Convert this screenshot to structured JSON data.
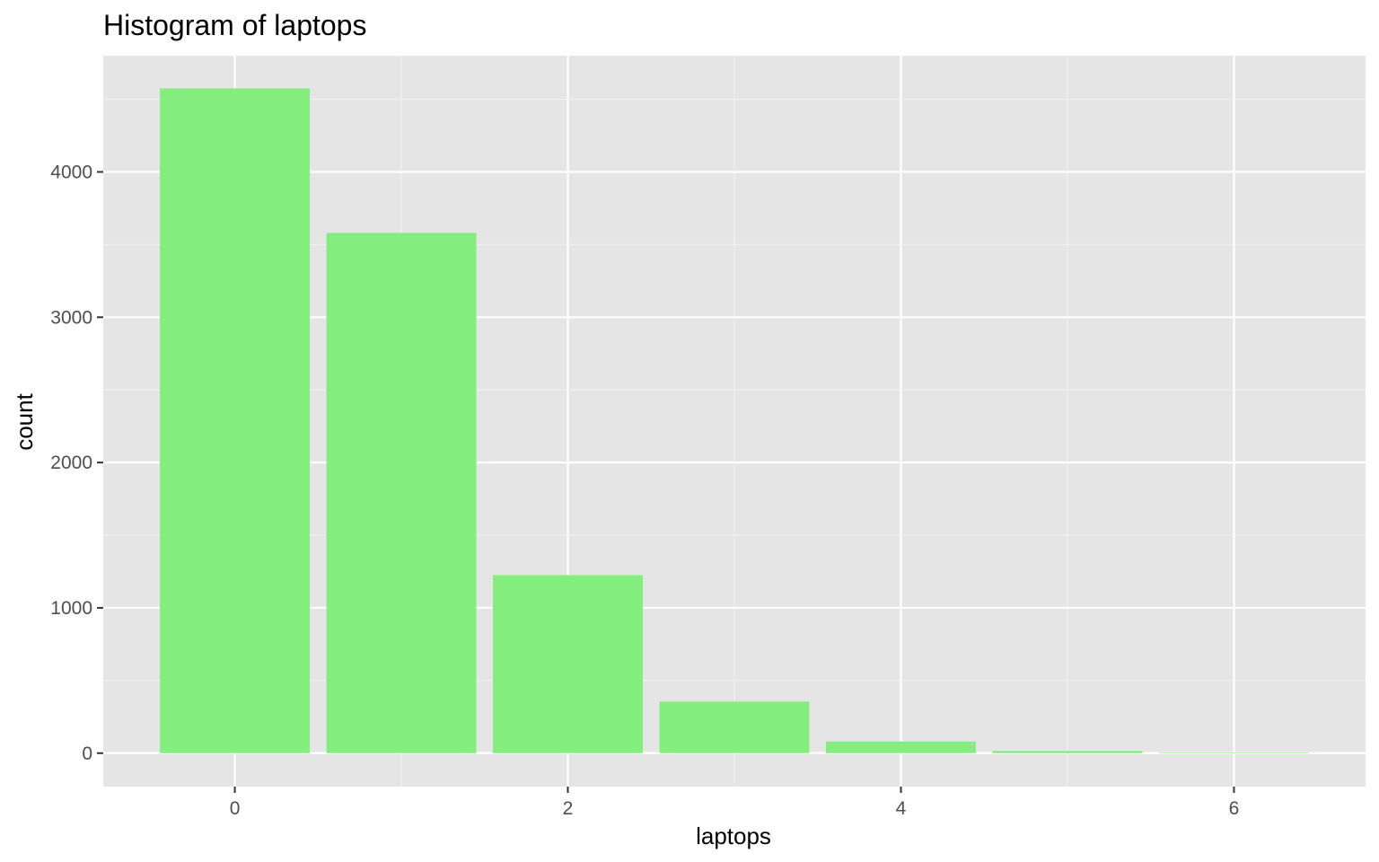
{
  "chart_data": {
    "type": "bar",
    "title": "Histogram of laptops",
    "xlabel": "laptops",
    "ylabel": "count",
    "x": [
      0,
      1,
      2,
      3,
      4,
      5,
      6
    ],
    "values": [
      4575,
      3580,
      1225,
      355,
      80,
      15,
      3
    ],
    "xlim": [
      -0.79,
      6.79
    ],
    "ylim": [
      -230,
      4800
    ],
    "x_ticks": [
      0,
      2,
      4,
      6
    ],
    "x_tick_labels": [
      "0",
      "2",
      "4",
      "6"
    ],
    "y_ticks": [
      0,
      1000,
      2000,
      3000,
      4000
    ],
    "y_tick_labels": [
      "0",
      "1000",
      "2000",
      "3000",
      "4000"
    ],
    "grid": true,
    "legend": "none",
    "colors": {
      "bar_fill": "#83ed7d",
      "panel_background": "#e5e5e5",
      "grid_major": "#ffffff",
      "grid_minor": "#f2f2f2",
      "tick_text": "#4d4d4d"
    }
  }
}
